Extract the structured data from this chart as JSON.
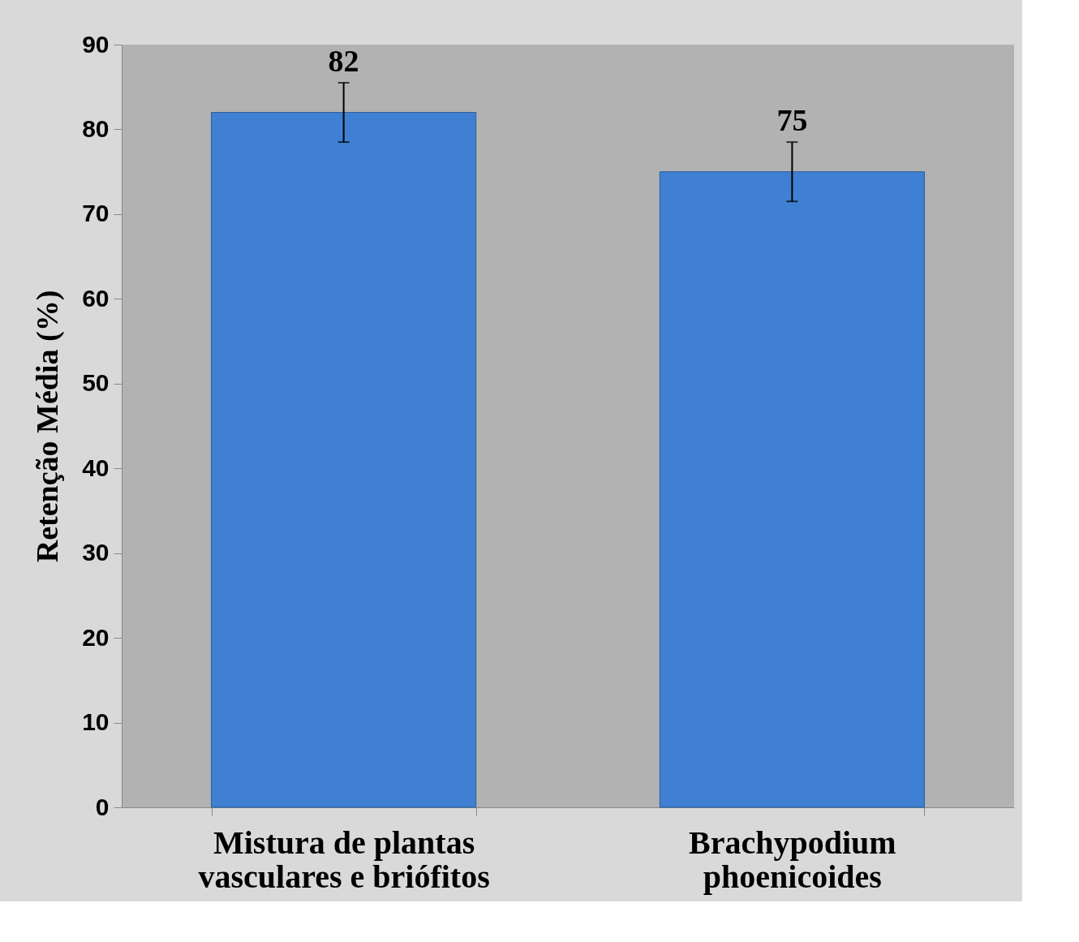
{
  "chart_data": {
    "type": "bar",
    "ylabel": "Retenção Média (%)",
    "categories": [
      "Mistura de plantas vasculares e briófitos",
      "Brachypodium phoenicoides"
    ],
    "values": [
      82,
      75
    ],
    "errors": [
      3.5,
      3.5
    ],
    "color": "#3f80d2",
    "ylim": [
      0,
      90
    ],
    "yticks": [
      0,
      10,
      20,
      30,
      40,
      50,
      60,
      70,
      80,
      90
    ],
    "data_labels": true
  }
}
